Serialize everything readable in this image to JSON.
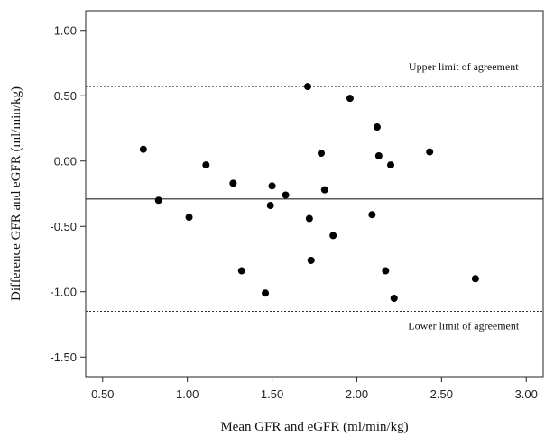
{
  "chart_data": {
    "type": "scatter",
    "xlabel": "Mean GFR and eGFR (ml/min/kg)",
    "ylabel": "Difference GFR and eGFR (ml/min/kg)",
    "xlim": [
      0.4,
      3.1
    ],
    "ylim": [
      -1.65,
      1.15
    ],
    "x_ticks": [
      "0.50",
      "1.00",
      "1.50",
      "2.00",
      "2.50",
      "3.00"
    ],
    "y_ticks": [
      "1.00",
      "0.50",
      "0.00",
      "-0.50",
      "-1.00",
      "-1.50"
    ],
    "grid": false,
    "mean_difference": -0.29,
    "upper_limit": 0.57,
    "lower_limit": -1.15,
    "annotations": {
      "upper": "Upper limit of agreement",
      "lower": "Lower limit of agreement"
    },
    "points": [
      {
        "x": 0.74,
        "y": 0.09
      },
      {
        "x": 0.83,
        "y": -0.3
      },
      {
        "x": 1.01,
        "y": -0.43
      },
      {
        "x": 1.11,
        "y": -0.03
      },
      {
        "x": 1.27,
        "y": -0.17
      },
      {
        "x": 1.32,
        "y": -0.84
      },
      {
        "x": 1.46,
        "y": -1.01
      },
      {
        "x": 1.49,
        "y": -0.34
      },
      {
        "x": 1.5,
        "y": -0.19
      },
      {
        "x": 1.58,
        "y": -0.26
      },
      {
        "x": 1.71,
        "y": 0.57
      },
      {
        "x": 1.72,
        "y": -0.44
      },
      {
        "x": 1.73,
        "y": -0.76
      },
      {
        "x": 1.79,
        "y": 0.06
      },
      {
        "x": 1.81,
        "y": -0.22
      },
      {
        "x": 1.86,
        "y": -0.57
      },
      {
        "x": 1.96,
        "y": 0.48
      },
      {
        "x": 2.09,
        "y": -0.41
      },
      {
        "x": 2.12,
        "y": 0.26
      },
      {
        "x": 2.13,
        "y": 0.04
      },
      {
        "x": 2.17,
        "y": -0.84
      },
      {
        "x": 2.2,
        "y": -0.03
      },
      {
        "x": 2.22,
        "y": -1.05
      },
      {
        "x": 2.43,
        "y": 0.07
      },
      {
        "x": 2.7,
        "y": -0.9
      }
    ]
  }
}
